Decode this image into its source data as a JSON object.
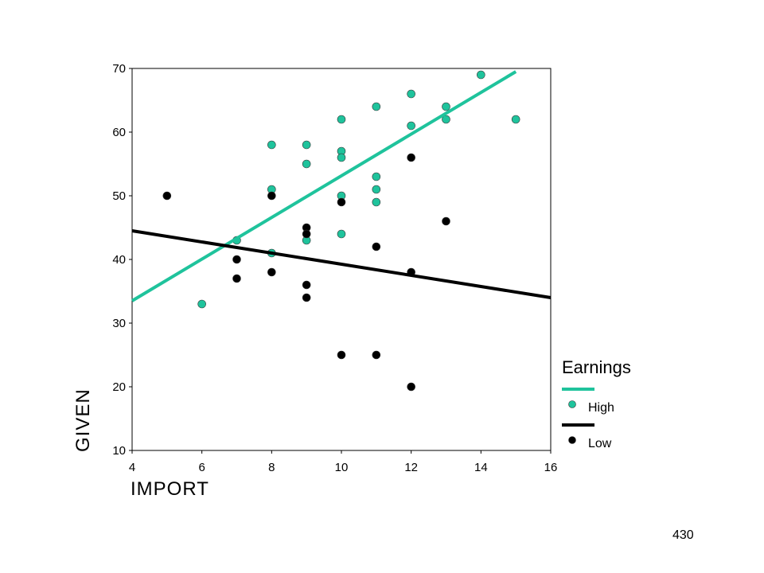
{
  "chart_data": {
    "type": "scatter",
    "title": "",
    "xlabel": "IMPORT",
    "ylabel": "GIVEN",
    "xlim": [
      4,
      16
    ],
    "ylim": [
      10,
      70
    ],
    "xticks": [
      4,
      6,
      8,
      10,
      12,
      14,
      16
    ],
    "yticks": [
      10,
      20,
      30,
      40,
      50,
      60,
      70
    ],
    "grid": false,
    "legend": {
      "title": "Earnings",
      "placement": "right"
    },
    "series": [
      {
        "name": "High",
        "color": "#1fc39c",
        "points": [
          [
            6,
            33
          ],
          [
            7,
            43
          ],
          [
            8,
            58
          ],
          [
            8,
            51
          ],
          [
            8,
            41
          ],
          [
            9,
            58
          ],
          [
            9,
            55
          ],
          [
            9,
            43
          ],
          [
            10,
            62
          ],
          [
            10,
            57
          ],
          [
            10,
            56
          ],
          [
            10,
            50
          ],
          [
            10,
            44
          ],
          [
            11,
            64
          ],
          [
            11,
            53
          ],
          [
            11,
            51
          ],
          [
            11,
            49
          ],
          [
            12,
            66
          ],
          [
            12,
            61
          ],
          [
            13,
            64
          ],
          [
            13,
            62
          ],
          [
            14,
            69
          ],
          [
            15,
            62
          ]
        ],
        "fit_line": [
          [
            4,
            33.5
          ],
          [
            15,
            69.5
          ]
        ]
      },
      {
        "name": "Low",
        "color": "#000000",
        "points": [
          [
            5,
            50
          ],
          [
            7,
            40
          ],
          [
            7,
            37
          ],
          [
            8,
            50
          ],
          [
            8,
            38
          ],
          [
            9,
            45
          ],
          [
            9,
            44
          ],
          [
            9,
            36
          ],
          [
            9,
            34
          ],
          [
            10,
            49
          ],
          [
            10,
            25
          ],
          [
            11,
            42
          ],
          [
            11,
            25
          ],
          [
            12,
            56
          ],
          [
            12,
            38
          ],
          [
            12,
            20
          ],
          [
            13,
            46
          ]
        ],
        "fit_line": [
          [
            4,
            44.5
          ],
          [
            16,
            34
          ]
        ]
      }
    ]
  },
  "page": {
    "number": "430"
  }
}
